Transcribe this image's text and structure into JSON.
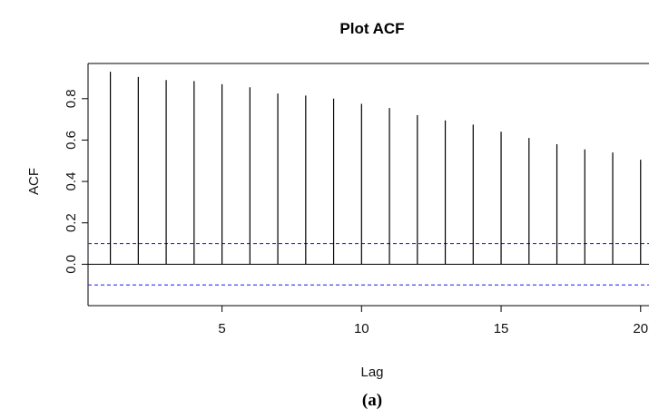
{
  "chart_data": {
    "type": "bar",
    "title": "Plot ACF",
    "xlabel": "Lag",
    "ylabel": "ACF",
    "x": [
      1,
      2,
      3,
      4,
      5,
      6,
      7,
      8,
      9,
      10,
      11,
      12,
      13,
      14,
      15,
      16,
      17,
      18,
      19,
      20
    ],
    "values": [
      0.93,
      0.905,
      0.89,
      0.885,
      0.87,
      0.855,
      0.825,
      0.815,
      0.8,
      0.775,
      0.755,
      0.72,
      0.695,
      0.675,
      0.64,
      0.61,
      0.58,
      0.555,
      0.54,
      0.505
    ],
    "confidence_bounds": [
      0.1,
      -0.1
    ],
    "confidence_color": "#3333ee",
    "xlim": [
      0.2,
      20.3
    ],
    "ylim": [
      -0.2,
      0.97
    ],
    "x_ticks": [
      5,
      10,
      15,
      20
    ],
    "x_tick_labels": [
      "5",
      "10",
      "15",
      "20"
    ],
    "y_ticks": [
      0.0,
      0.2,
      0.4,
      0.6,
      0.8
    ],
    "y_tick_labels": [
      "0.0",
      "0.2",
      "0.4",
      "0.6",
      "0.8"
    ],
    "grid": false,
    "legend": "none"
  },
  "caption": "(a)"
}
